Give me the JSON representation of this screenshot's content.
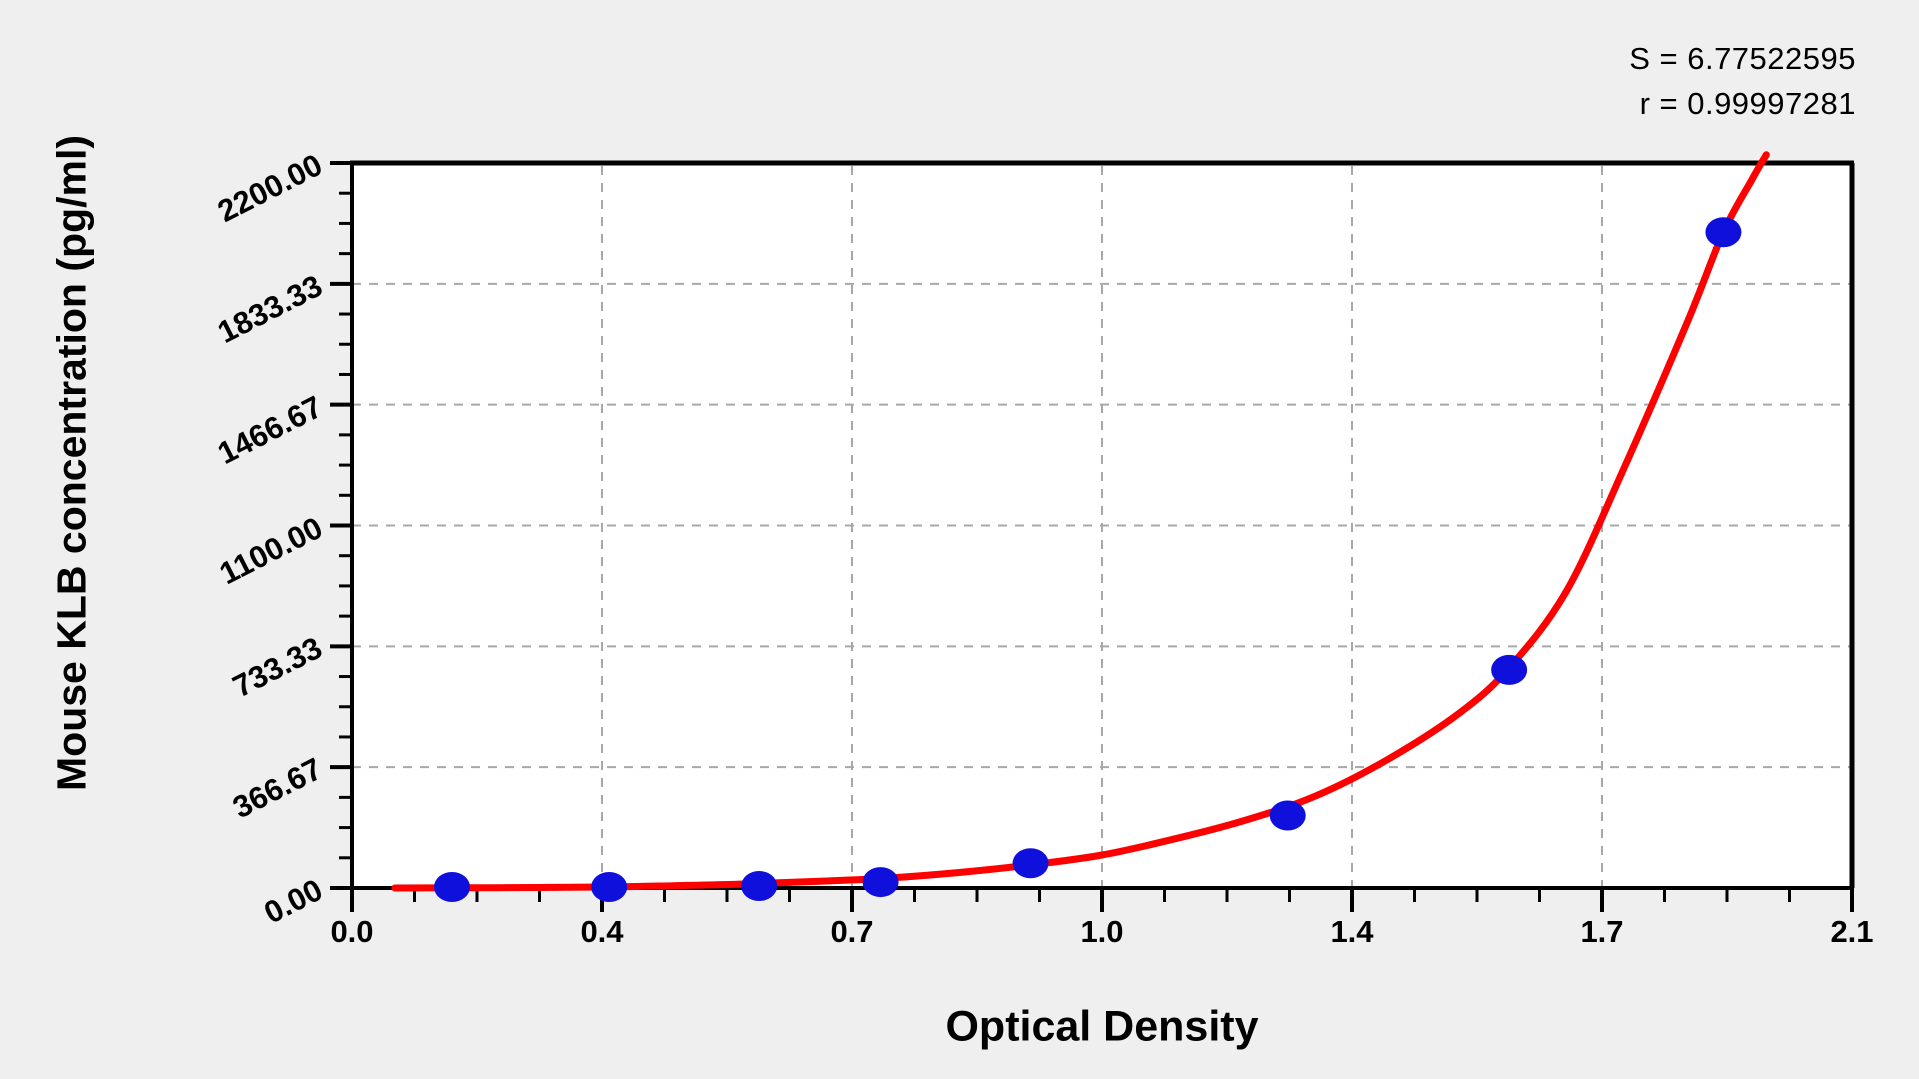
{
  "stats": {
    "s_line": "S = 6.77522595",
    "r_line": "r = 0.99997281"
  },
  "chart_data": {
    "type": "scatter",
    "title": "",
    "xlabel": "Optical Density",
    "ylabel": "Mouse KLB concentration (pg/ml)",
    "xlim": [
      0,
      2.1
    ],
    "ylim": [
      0,
      2200
    ],
    "x_tick_values": [
      0,
      0.35,
      0.7,
      1.05,
      1.4,
      1.75,
      2.1
    ],
    "x_tick_labels": [
      "0.0",
      "0.4",
      "0.7",
      "1.0",
      "1.4",
      "1.7",
      "2.1"
    ],
    "y_tick_values": [
      0,
      366.67,
      733.33,
      1100,
      1466.67,
      1833.33,
      2200
    ],
    "y_tick_labels": [
      "0.00",
      "366.67",
      "733.33",
      "1100.00",
      "1466.67",
      "1833.33",
      "2200.00"
    ],
    "minor_divisions_per_major": 4,
    "grid": "dashed gray lines at interior major ticks, plot area white on gray page, legend none",
    "fit_stats": {
      "S": 6.77522595,
      "r": 0.99997281
    },
    "points": [
      {
        "od": 0.14,
        "conc": 3
      },
      {
        "od": 0.36,
        "conc": 3
      },
      {
        "od": 0.57,
        "conc": 6
      },
      {
        "od": 0.74,
        "conc": 18
      },
      {
        "od": 0.95,
        "conc": 75
      },
      {
        "od": 1.31,
        "conc": 220
      },
      {
        "od": 1.62,
        "conc": 662
      },
      {
        "od": 1.92,
        "conc": 1990
      }
    ],
    "curve_points": [
      [
        0.06,
        0
      ],
      [
        0.2,
        1
      ],
      [
        0.35,
        3
      ],
      [
        0.45,
        7
      ],
      [
        0.55,
        12
      ],
      [
        0.65,
        20
      ],
      [
        0.75,
        30
      ],
      [
        0.85,
        47
      ],
      [
        0.95,
        70
      ],
      [
        1.05,
        100
      ],
      [
        1.15,
        148
      ],
      [
        1.25,
        205
      ],
      [
        1.35,
        280
      ],
      [
        1.45,
        390
      ],
      [
        1.55,
        530
      ],
      [
        1.62,
        668
      ],
      [
        1.7,
        900
      ],
      [
        1.78,
        1270
      ],
      [
        1.87,
        1720
      ],
      [
        1.92,
        1990
      ],
      [
        1.96,
        2150
      ],
      [
        1.98,
        2225
      ]
    ],
    "colors": {
      "curve": "#ff0000",
      "point": "#1010dd",
      "grid": "#a8a8a8",
      "axis": "#000000",
      "plot_background": "#ffffff",
      "page_background": "#efefef"
    }
  }
}
